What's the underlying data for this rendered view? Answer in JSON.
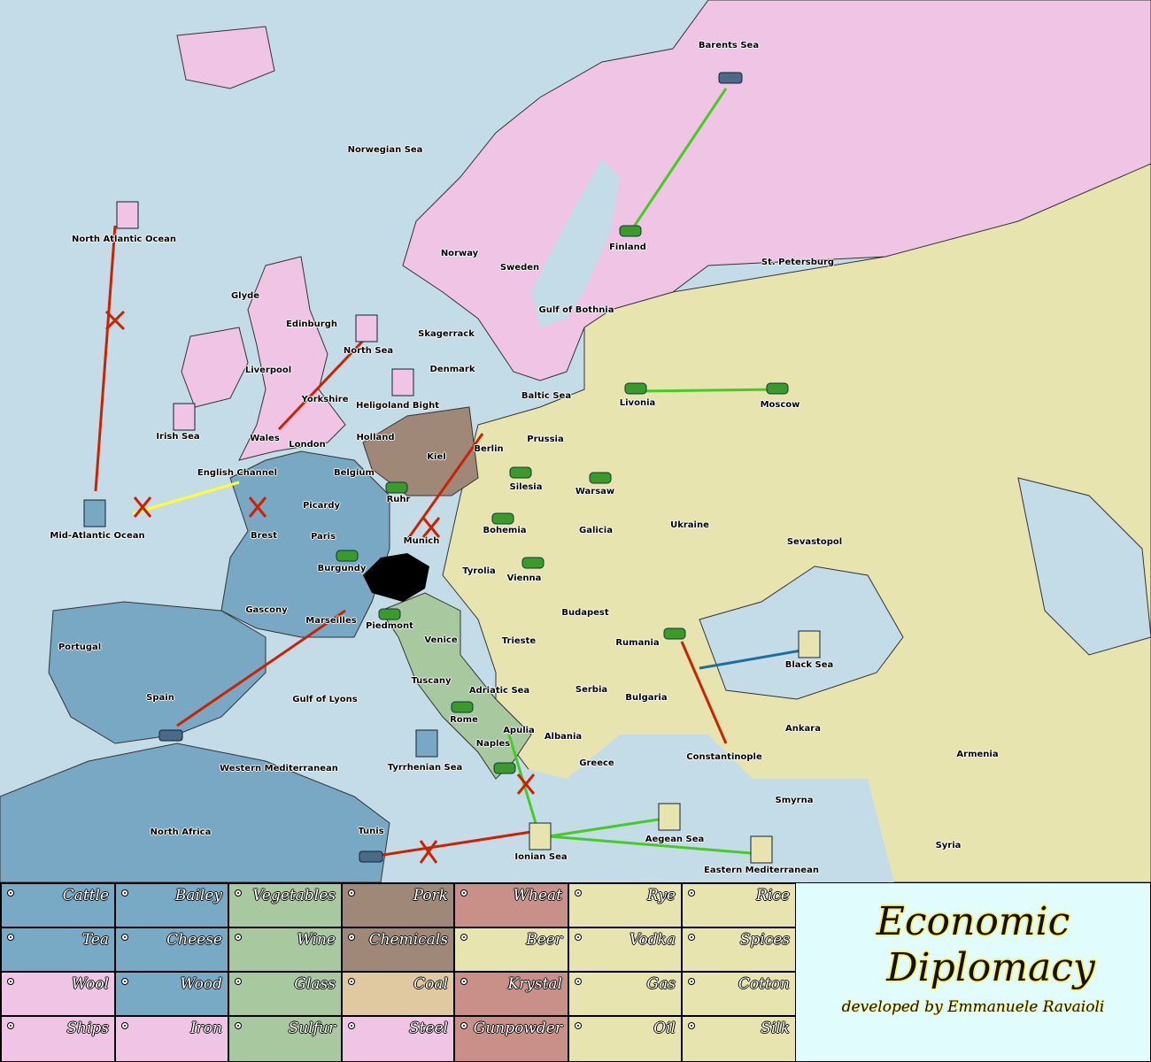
{
  "map": {
    "colors": {
      "sea": "#c4dce8",
      "north_pink": "#f0c4e4",
      "east_yellow": "#e8e4b0",
      "france_blue": "#78a8c4",
      "italy_green": "#a8c8a0",
      "germany_brown": "#a08878",
      "order_red": "#cc2200",
      "support_yellow": "#ffff30",
      "convoy_green": "#44cc22"
    },
    "labels": [
      "Barents Sea",
      "Norwegian Sea",
      "North Atlantic Ocean",
      "Finland",
      "St. Petersburg",
      "Norway",
      "Sweden",
      "Gulf of Bothnia",
      "Glyde",
      "Edinburgh",
      "Skagerrack",
      "North Sea",
      "Liverpool",
      "Denmark",
      "Baltic Sea",
      "Livonia",
      "Moscow",
      "Yorkshire",
      "Heligoland Bight",
      "Irish Sea",
      "Wales",
      "Holland",
      "Prussia",
      "London",
      "Berlin",
      "Kiel",
      "English Channel",
      "Belgium",
      "Silesia",
      "Warsaw",
      "Picardy",
      "Ruhr",
      "Ukraine",
      "Mid-Atlantic Ocean",
      "Brest",
      "Paris",
      "Munich",
      "Bohemia",
      "Galicia",
      "Sevastopol",
      "Burgundy",
      "Tyrolia",
      "Vienna",
      "Gascony",
      "Budapest",
      "Marseilles",
      "Piedmont",
      "Portugal",
      "Venice",
      "Trieste",
      "Rumania",
      "Black Sea",
      "Adriatic Sea",
      "Tuscany",
      "Serbia",
      "Bulgaria",
      "Spain",
      "Gulf of Lyons",
      "Rome",
      "Apulia",
      "Albania",
      "Ankara",
      "Armenia",
      "Naples",
      "Constantinople",
      "Western Mediterranean",
      "Tyrrhenian Sea",
      "Greece",
      "Smyrna",
      "North Africa",
      "Tunis",
      "Aegean Sea",
      "Syria",
      "Ionian Sea",
      "Eastern Mediterranean"
    ]
  },
  "commodities": [
    [
      "Cattle",
      "Bailey",
      "Vegetables",
      "Pork",
      "Wheat",
      "Rye",
      "Rice"
    ],
    [
      "Tea",
      "Cheese",
      "Wine",
      "Chemicals",
      "Beer",
      "Vodka",
      "Spices"
    ],
    [
      "Wool",
      "Wood",
      "Glass",
      "Coal",
      "Krystal",
      "Gas",
      "Cotton"
    ],
    [
      "Ships",
      "Iron",
      "Sulfur",
      "Steel",
      "Gunpowder",
      "Oil",
      "Silk"
    ]
  ],
  "logo": {
    "title_line1": "Economic",
    "title_line2": "Diplomacy",
    "credit": "developed by Emmanuele Ravaioli"
  }
}
